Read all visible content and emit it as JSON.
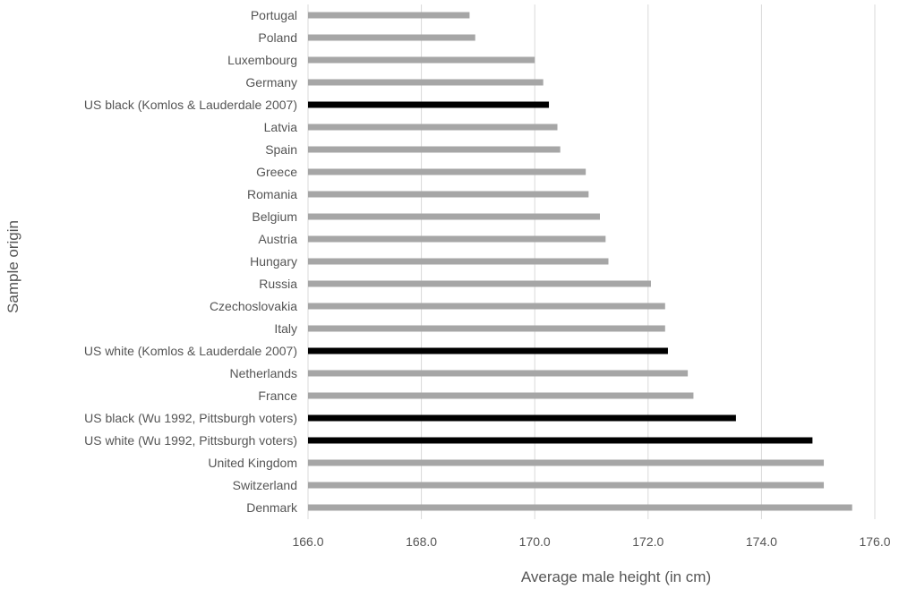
{
  "chart_data": {
    "type": "bar",
    "orientation": "horizontal",
    "title": "",
    "xlabel": "Average male height (in cm)",
    "ylabel": "Sample origin",
    "xlim": [
      166.0,
      176.0
    ],
    "xticks": [
      166.0,
      168.0,
      170.0,
      172.0,
      174.0,
      176.0
    ],
    "tick_labels": [
      "166.0",
      "168.0",
      "170.0",
      "172.0",
      "174.0",
      "176.0"
    ],
    "grid": "vertical",
    "legend": "none",
    "colors": {
      "default": "#a6a6a6",
      "highlight": "#000000",
      "grid": "#d9d9d9",
      "text": "#555555"
    },
    "categories": [
      "Portugal",
      "Poland",
      "Luxembourg",
      "Germany",
      "US black (Komlos & Lauderdale 2007)",
      "Latvia",
      "Spain",
      "Greece",
      "Romania",
      "Belgium",
      "Austria",
      "Hungary",
      "Russia",
      "Czechoslovakia",
      "Italy",
      "US white (Komlos & Lauderdale 2007)",
      "Netherlands",
      "France",
      "US black (Wu 1992, Pittsburgh voters)",
      "US white (Wu 1992, Pittsburgh voters)",
      "United Kingdom",
      "Switzerland",
      "Denmark"
    ],
    "values": [
      168.85,
      168.95,
      170.0,
      170.15,
      170.25,
      170.4,
      170.45,
      170.9,
      170.95,
      171.15,
      171.25,
      171.3,
      172.05,
      172.3,
      172.3,
      172.35,
      172.7,
      172.8,
      173.55,
      174.9,
      175.1,
      175.1,
      175.6
    ],
    "highlighted": [
      false,
      false,
      false,
      false,
      true,
      false,
      false,
      false,
      false,
      false,
      false,
      false,
      false,
      false,
      false,
      true,
      false,
      false,
      true,
      true,
      false,
      false,
      false
    ]
  }
}
